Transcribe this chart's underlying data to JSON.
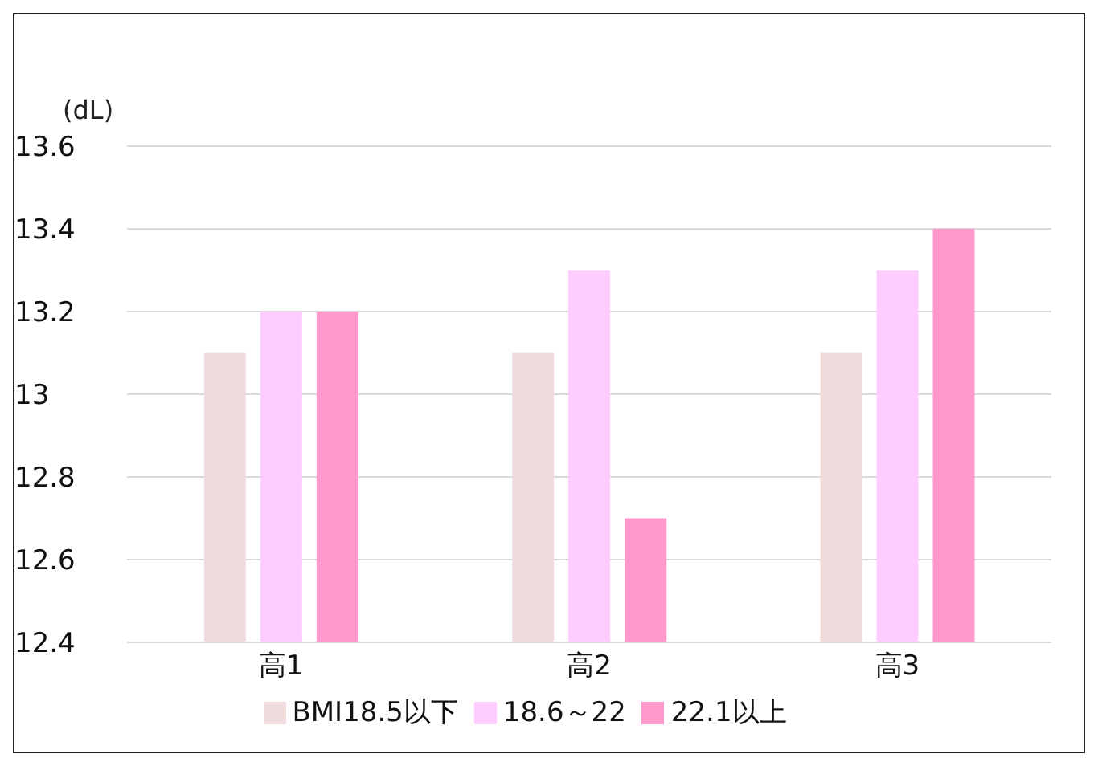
{
  "chart_data": {
    "type": "bar",
    "ylabel": "(dL)",
    "categories": [
      "高1",
      "高2",
      "高3"
    ],
    "series": [
      {
        "name": "BMI18.5以下",
        "color": "#f0dcdc",
        "values": [
          13.1,
          13.1,
          13.1
        ]
      },
      {
        "name": "18.6～22",
        "color": "#ffccff",
        "values": [
          13.2,
          13.3,
          13.3
        ]
      },
      {
        "name": "22.1以上",
        "color": "#ff99cc",
        "values": [
          13.2,
          12.7,
          13.4
        ]
      }
    ],
    "ylim": [
      12.4,
      13.6
    ],
    "yticks": [
      12.4,
      12.6,
      12.8,
      13,
      13.2,
      13.4,
      13.6
    ],
    "grid": "y",
    "legend": "bottom"
  }
}
